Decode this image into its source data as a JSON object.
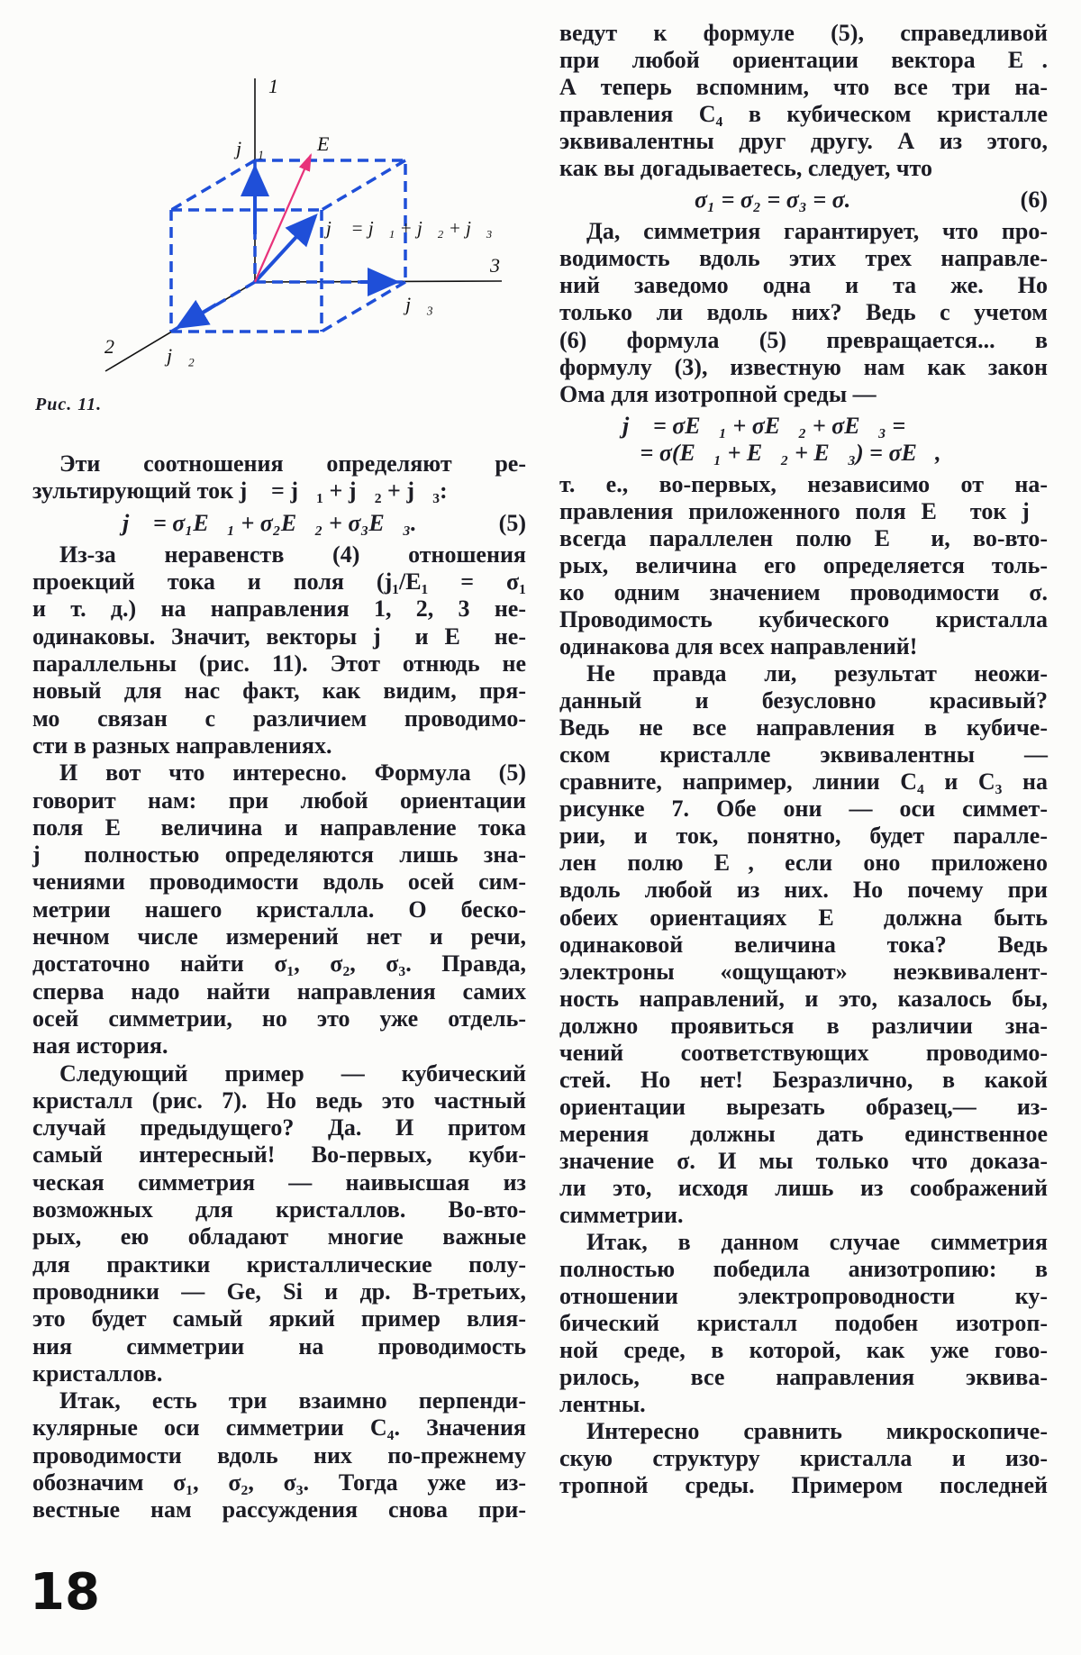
{
  "figure": {
    "caption": "Рис. 11.",
    "labels": {
      "axis1": "1",
      "axis2": "2",
      "axis3": "3",
      "E": "E⃗",
      "j1": "j⃗₁",
      "j2": "j⃗₂",
      "j3": "j⃗₃",
      "sum": "j⃗ = j⃗₁ + j⃗₂ + j⃗₃"
    },
    "colors": {
      "cube": "#1f4fd8",
      "field": "#e8327a",
      "axes": "#111111"
    }
  },
  "page_number": "18",
  "columns": {
    "left": [
      {
        "type": "p",
        "lines": [
          "Эти соотношения определяют ре-",
          "зультирующий ток j⃗ = j⃗₁ + j⃗₂ + j⃗₃:"
        ]
      },
      {
        "type": "formula",
        "lines": [
          "j⃗ = σ₁E⃗₁ + σ₂E⃗₂ + σ₃E⃗₃."
        ],
        "number": "(5)"
      },
      {
        "type": "p",
        "lines": [
          "Из-за неравенств (4) отношения",
          "проекций тока и поля (j₁/E₁ = σ₁",
          "и т. д.) на направления 1, 2, 3 не-",
          "одинаковы. Значит, векторы j⃗ и E⃗ не-",
          "параллельны (рис. 11). Этот отнюдь не",
          "новый для нас факт, как видим, пря-",
          "мо связан с различием проводимо-",
          "сти в разных направлениях."
        ]
      },
      {
        "type": "p",
        "lines": [
          "И вот что интересно. Формула (5)",
          "говорит нам: при любой ориентации",
          "поля E⃗ величина и направление тока",
          "j⃗ полностью определяются лишь зна-",
          "чениями проводимости вдоль осей сим-",
          "метрии нашего кристалла. О беско-",
          "нечном числе измерений нет и речи,",
          "достаточно найти σ₁, σ₂, σ₃. Правда,",
          "сперва надо найти направления самих",
          "осей симметрии, но это уже отдель-",
          "ная история."
        ]
      },
      {
        "type": "p",
        "lines": [
          "Следующий пример — кубический",
          "кристалл (рис. 7). Но ведь это частный",
          "случай предыдущего? Да. И притом",
          "самый интересный! Во-первых, куби-",
          "ческая симметрия — наивысшая из",
          "возможных для кристаллов. Во-вто-",
          "рых, ею обладают многие важные",
          "для практики кристаллические полу-",
          "проводники — Ge, Si и др. В-третьих,",
          "это будет самый яркий пример влия-",
          "ния симметрии на проводимость",
          "кристаллов."
        ]
      },
      {
        "type": "p",
        "continues": true,
        "lines": [
          "Итак, есть три взаимно перпенди-",
          "кулярные оси симметрии C₄. Значения",
          "проводимости вдоль них по-прежнему",
          "обозначим σ₁, σ₂, σ₃. Тогда уже из-",
          "вестные нам рассуждения снова при-"
        ]
      }
    ],
    "right": [
      {
        "type": "p",
        "cont": true,
        "lines": [
          "ведут к формуле (5), справедливой",
          "при любой ориентации вектора E⃗.",
          "А теперь вспомним, что все три на-",
          "правления C₄ в кубическом кристалле",
          "эквивалентны друг другу. А из этого,",
          "как вы догадываетесь, следует, что"
        ]
      },
      {
        "type": "formula",
        "lines": [
          "σ₁ = σ₂ = σ₃ = σ."
        ],
        "number": "(6)"
      },
      {
        "type": "p",
        "lines": [
          "Да, симметрия гарантирует, что про-",
          "водимость вдоль этих трех направле-",
          "ний заведомо одна и та же. Но",
          "только ли вдоль них? Ведь с учетом",
          "(6) формула (5) превращается... в",
          "формулу (3), известную нам как закон",
          "Ома для изотропной среды —"
        ]
      },
      {
        "type": "formula",
        "lines": [
          "j⃗ = σE⃗₁ + σE⃗₂ + σE⃗₃ =",
          "   = σ(E⃗₁ + E⃗₂ + E⃗₃) = σE⃗,"
        ],
        "number": ""
      },
      {
        "type": "p",
        "cont": true,
        "lines": [
          "т. е., во-первых, независимо от на-",
          "правления приложенного поля E⃗ ток j⃗",
          "всегда параллелен полю E⃗ и, во-вто-",
          "рых, величина его определяется толь-",
          "ко одним значением проводимости σ.",
          "Проводимость кубического кристалла",
          "одинакова для всех направлений!"
        ]
      },
      {
        "type": "p",
        "lines": [
          "Не правда ли, результат неожи-",
          "данный и безусловно красивый?",
          "Ведь не все направления в кубиче-",
          "ском кристалле эквивалентны —",
          "сравните, например, линии C₄ и C₃ на",
          "рисунке 7. Обе они — оси симмет-",
          "рии, и ток, понятно, будет паралле-",
          "лен полю E⃗, если оно приложено",
          "вдоль любой из них. Но почему при",
          "обеих ориентациях E⃗ должна быть",
          "одинаковой величина тока? Ведь",
          "электроны «ощущают» неэквивалент-",
          "ность направлений, и это, казалось бы,",
          "должно проявиться в различии зна-",
          "чений соответствующих проводимо-",
          "стей. Но нет! Безразлично, в какой",
          "ориентации вырезать образец,— из-",
          "мерения должны дать единственное",
          "значение σ. И мы только что доказа-",
          "ли это, исходя лишь из соображений",
          "симметрии."
        ]
      },
      {
        "type": "p",
        "lines": [
          "Итак, в данном случае симметрия",
          "полностью победила анизотропию: в",
          "отношении электропроводности ку-",
          "бический кристалл подобен изотроп-",
          "ной среде, в которой, как уже гово-",
          "рилось, все направления эквива-",
          "лентны."
        ]
      },
      {
        "type": "p",
        "continues": true,
        "lines": [
          "Интересно сравнить микроскопиче-",
          "скую структуру кристалла и изо-",
          "тропной среды. Примером последней"
        ]
      }
    ]
  }
}
